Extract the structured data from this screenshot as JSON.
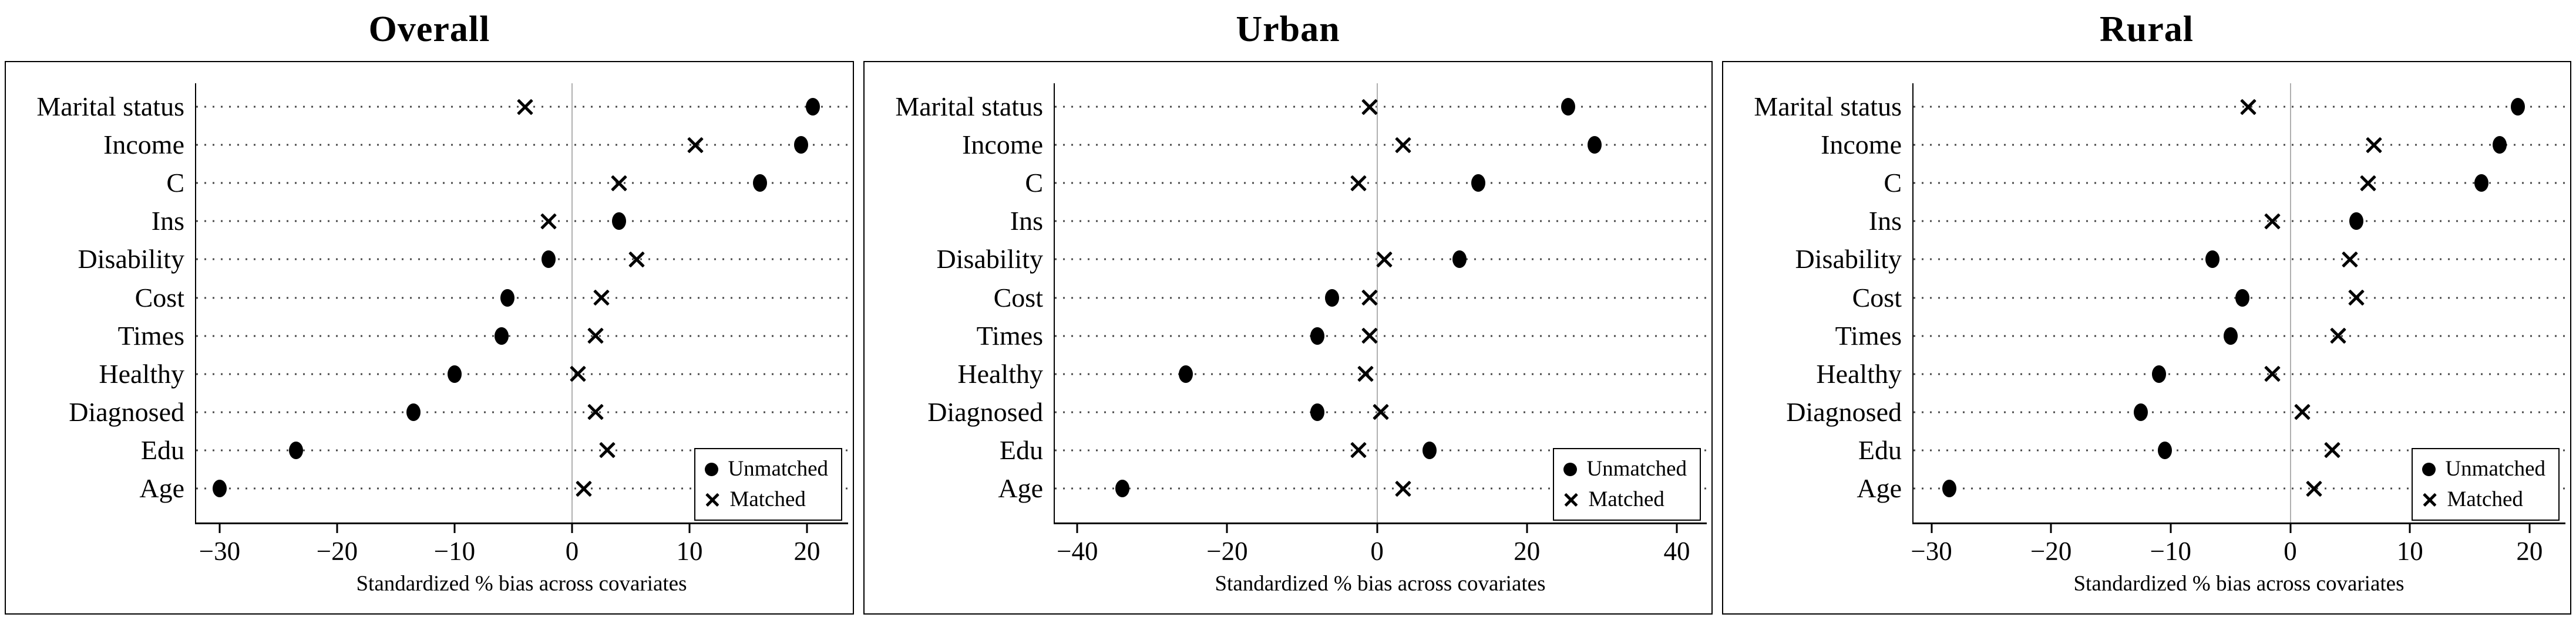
{
  "figure": {
    "background": "#ffffff",
    "legend": {
      "unmatched_label": "Unmatched",
      "matched_label": "Matched"
    },
    "icons": {
      "unmatched-marker-icon": "filled-circle",
      "matched-marker-icon": "cross"
    },
    "colors": {
      "marker": "#000000",
      "zero_line": "#b0b0b0",
      "dotted_line": "#4a4a4a",
      "frame": "#000000",
      "text": "#000000"
    }
  },
  "chart_data": [
    {
      "type": "scatter",
      "title": "Overall",
      "xlabel": "Standardized % bias across covariates",
      "categories": [
        "Marital status",
        "Income",
        "C",
        "Ins",
        "Disability",
        "Cost",
        "Times",
        "Healthy",
        "Diagnosed",
        "Edu",
        "Age"
      ],
      "series": [
        {
          "name": "Unmatched",
          "marker": "circle",
          "values": [
            20.5,
            19.5,
            16,
            4,
            -2,
            -5.5,
            -6,
            -10,
            -13.5,
            -23.5,
            -30
          ]
        },
        {
          "name": "Matched",
          "marker": "cross",
          "values": [
            -4,
            10.5,
            4,
            -2,
            5.5,
            2.5,
            2,
            0.5,
            2,
            3,
            1
          ]
        }
      ],
      "xlim": [
        -32,
        23.5
      ],
      "xticks": [
        -30,
        -20,
        -10,
        0,
        10,
        20
      ],
      "zero_line": true,
      "grid": "dotted-horizontal",
      "legend_position": "bottom-right"
    },
    {
      "type": "scatter",
      "title": "Urban",
      "xlabel": "Standardized % bias across covariates",
      "categories": [
        "Marital status",
        "Income",
        "C",
        "Ins",
        "Disability",
        "Cost",
        "Times",
        "Healthy",
        "Diagnosed",
        "Edu",
        "Age"
      ],
      "series": [
        {
          "name": "Unmatched",
          "marker": "circle",
          "values": [
            25.5,
            29,
            13.5,
            null,
            11,
            -6,
            -8,
            -25.5,
            -8,
            7,
            -34
          ]
        },
        {
          "name": "Matched",
          "marker": "cross",
          "values": [
            -1,
            3.5,
            -2.5,
            null,
            1,
            -1,
            -1,
            -1.5,
            0.5,
            -2.5,
            3.5
          ]
        }
      ],
      "xlim": [
        -43,
        44
      ],
      "xticks": [
        -40,
        -20,
        0,
        20,
        40
      ],
      "zero_line": true,
      "grid": "dotted-horizontal",
      "legend_position": "bottom-right"
    },
    {
      "type": "scatter",
      "title": "Rural",
      "xlabel": "Standardized % bias across covariates",
      "categories": [
        "Marital status",
        "Income",
        "C",
        "Ins",
        "Disability",
        "Cost",
        "Times",
        "Healthy",
        "Diagnosed",
        "Edu",
        "Age"
      ],
      "series": [
        {
          "name": "Unmatched",
          "marker": "circle",
          "values": [
            19,
            17.5,
            16,
            5.5,
            -6.5,
            -4,
            -5,
            -11,
            -12.5,
            -10.5,
            -28.5
          ]
        },
        {
          "name": "Matched",
          "marker": "cross",
          "values": [
            -3.5,
            7,
            6.5,
            -1.5,
            5,
            5.5,
            4,
            -1.5,
            1,
            3.5,
            2
          ]
        }
      ],
      "xlim": [
        -31.5,
        23
      ],
      "xticks": [
        -30,
        -20,
        -10,
        0,
        10,
        20
      ],
      "zero_line": true,
      "grid": "dotted-horizontal",
      "legend_position": "bottom-right"
    }
  ]
}
